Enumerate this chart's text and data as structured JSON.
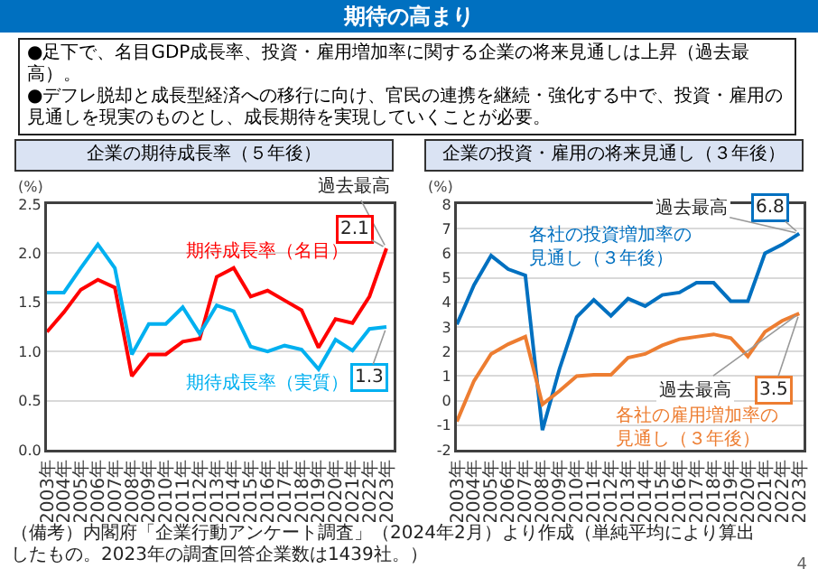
{
  "chart_data": [
    {
      "type": "other",
      "title": "期待の高まり",
      "subtitle": "●足下で、名目GDP成長率、投資・雇用増加率に関する企業の将来見通しは上昇（過去最高）。\n●デフレ脱却と成長型経済への移行に向け、官民の連携を継続・強化する中で、投資・雇用の見通しを現実のものとし、成長期待を実現していくことが必要。",
      "annotations": [
        "（備考）内閣府「企業行動アンケート調査」（2024年2月）より作成（単純平均により算出したもの。2023年の調査回答企業数は1439社。）",
        "4"
      ]
    },
    {
      "type": "line",
      "title": "企業の期待成長率（５年後）",
      "ylabel": "(%)",
      "categories": [
        "2003年",
        "2004年",
        "2005年",
        "2006年",
        "2007年",
        "2008年",
        "2009年",
        "2010年",
        "2011年",
        "2012年",
        "2013年",
        "2014年",
        "2015年",
        "2016年",
        "2017年",
        "2018年",
        "2019年",
        "2020年",
        "2021年",
        "2022年",
        "2023年"
      ],
      "series": [
        {
          "name": "期待成長率（名目）",
          "color": "#ff0000",
          "values": [
            1.2,
            1.4,
            1.63,
            1.73,
            1.65,
            0.75,
            0.97,
            0.97,
            1.1,
            1.13,
            1.76,
            1.85,
            1.56,
            1.62,
            1.52,
            1.42,
            1.04,
            1.33,
            1.29,
            1.56,
            2.05
          ]
        },
        {
          "name": "期待成長率（実質）",
          "color": "#00b0f0",
          "values": [
            1.6,
            1.6,
            1.85,
            2.09,
            1.85,
            0.97,
            1.28,
            1.28,
            1.45,
            1.18,
            1.47,
            1.41,
            1.05,
            1.0,
            1.06,
            1.02,
            0.82,
            1.12,
            1.01,
            1.23,
            1.25
          ]
        }
      ],
      "ylim": [
        0,
        2.5
      ],
      "yticks": [
        {
          "value": 0,
          "label": "0.0"
        },
        0.5,
        {
          "value": 1,
          "label": "1.0"
        },
        1.5,
        {
          "value": 2,
          "label": "2.0"
        },
        2.5
      ],
      "grid": "y",
      "annotations": [
        {
          "text": "過去最高",
          "x": "2023年",
          "y": 2.05
        },
        {
          "text": "2.1",
          "x": "2023年",
          "y": 2.05
        },
        {
          "text": "1.3",
          "x": "2023年",
          "y": 1.25
        }
      ]
    },
    {
      "type": "line",
      "title": "企業の投資・雇用の将来見通し（３年後）",
      "ylabel": "(%)",
      "categories": [
        "2003年",
        "2004年",
        "2005年",
        "2006年",
        "2007年",
        "2008年",
        "2009年",
        "2010年",
        "2011年",
        "2012年",
        "2013年",
        "2014年",
        "2015年",
        "2016年",
        "2017年",
        "2018年",
        "2019年",
        "2020年",
        "2021年",
        "2022年",
        "2023年"
      ],
      "series": [
        {
          "name": "各社の投資増加率の見通し（３年後）",
          "color": "#0070c0",
          "values": [
            3.1,
            4.7,
            5.9,
            5.35,
            5.1,
            -1.2,
            1.3,
            3.4,
            4.1,
            3.45,
            4.15,
            3.85,
            4.3,
            4.4,
            4.8,
            4.8,
            4.05,
            4.05,
            6.0,
            6.35,
            6.8
          ]
        },
        {
          "name": "各社の雇用増加率の見通し（３年後）",
          "color": "#ed7d31",
          "values": [
            -0.85,
            0.8,
            1.9,
            2.3,
            2.6,
            -0.15,
            0.4,
            1.0,
            1.05,
            1.05,
            1.75,
            1.9,
            2.25,
            2.5,
            2.6,
            2.7,
            2.55,
            1.8,
            2.8,
            3.25,
            3.55
          ]
        }
      ],
      "ylim": [
        -2,
        8
      ],
      "yticks": [
        -2,
        -1,
        0,
        1,
        2,
        3,
        4,
        5,
        6,
        7,
        8
      ],
      "grid": "y",
      "annotations": [
        {
          "text": "6.8",
          "x": "2023年",
          "y": 6.8
        },
        {
          "text": "過去最高",
          "x": "2023年",
          "y": 6.8
        },
        {
          "text": "3.5",
          "x": "2023年",
          "y": 3.55
        },
        {
          "text": "過去最高",
          "x": "2023年",
          "y": 3.55
        }
      ]
    }
  ]
}
